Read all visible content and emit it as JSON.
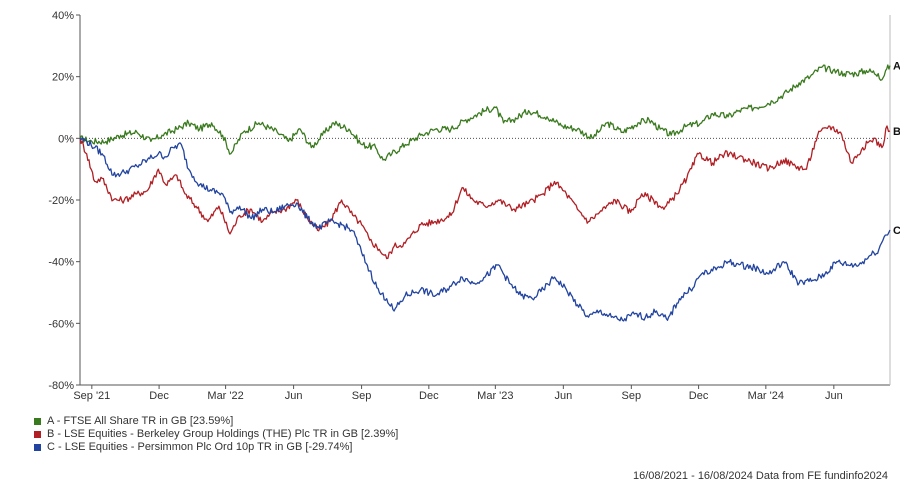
{
  "chart_data": {
    "type": "line",
    "ylim": [
      -80,
      40
    ],
    "y_ticks": [
      "40%",
      "20%",
      "0%",
      "-20%",
      "-40%",
      "-60%",
      "-80%"
    ],
    "x_ticks": [
      "Sep '21",
      "Dec",
      "Mar '22",
      "Jun",
      "Sep",
      "Dec",
      "Mar '23",
      "Jun",
      "Sep",
      "Dec",
      "Mar '24",
      "Jun"
    ],
    "x_range": [
      "2021-08-16",
      "2024-08-16"
    ],
    "grid": false,
    "zero_line": "dotted",
    "series": [
      {
        "end_label": "A",
        "name": "A - FTSE All Share TR in GB [23.59%]",
        "color": "#3a7a1e",
        "points": [
          [
            "2021-08-16",
            0
          ],
          [
            "2021-09-01",
            -1
          ],
          [
            "2021-09-20",
            -1
          ],
          [
            "2021-10-10",
            1
          ],
          [
            "2021-11-01",
            2
          ],
          [
            "2021-11-20",
            -1
          ],
          [
            "2021-12-05",
            1
          ],
          [
            "2021-12-25",
            3
          ],
          [
            "2022-01-10",
            5
          ],
          [
            "2022-01-25",
            3
          ],
          [
            "2022-02-10",
            5
          ],
          [
            "2022-02-25",
            1
          ],
          [
            "2022-03-08",
            -5
          ],
          [
            "2022-03-25",
            2
          ],
          [
            "2022-04-15",
            5
          ],
          [
            "2022-05-10",
            2
          ],
          [
            "2022-05-25",
            -1
          ],
          [
            "2022-06-10",
            3
          ],
          [
            "2022-06-25",
            -3
          ],
          [
            "2022-07-10",
            1
          ],
          [
            "2022-07-25",
            5
          ],
          [
            "2022-08-15",
            3
          ],
          [
            "2022-09-01",
            -2
          ],
          [
            "2022-09-20",
            -3
          ],
          [
            "2022-09-30",
            -7
          ],
          [
            "2022-10-12",
            -5
          ],
          [
            "2022-10-30",
            -2
          ],
          [
            "2022-11-20",
            1
          ],
          [
            "2022-12-10",
            3
          ],
          [
            "2022-12-31",
            3
          ],
          [
            "2023-01-20",
            6
          ],
          [
            "2023-02-15",
            9
          ],
          [
            "2023-03-01",
            10
          ],
          [
            "2023-03-12",
            5
          ],
          [
            "2023-03-25",
            6
          ],
          [
            "2023-04-15",
            9
          ],
          [
            "2023-05-10",
            7
          ],
          [
            "2023-05-31",
            4
          ],
          [
            "2023-06-20",
            3
          ],
          [
            "2023-07-10",
            0
          ],
          [
            "2023-07-30",
            5
          ],
          [
            "2023-08-20",
            2
          ],
          [
            "2023-09-10",
            5
          ],
          [
            "2023-09-25",
            6
          ],
          [
            "2023-10-10",
            3
          ],
          [
            "2023-10-25",
            1
          ],
          [
            "2023-11-15",
            4
          ],
          [
            "2023-12-05",
            5
          ],
          [
            "2023-12-20",
            8
          ],
          [
            "2024-01-10",
            7
          ],
          [
            "2024-01-25",
            9
          ],
          [
            "2024-02-15",
            10
          ],
          [
            "2024-03-10",
            12
          ],
          [
            "2024-03-30",
            15
          ],
          [
            "2024-04-15",
            18
          ],
          [
            "2024-04-30",
            20
          ],
          [
            "2024-05-15",
            23
          ],
          [
            "2024-05-31",
            22
          ],
          [
            "2024-06-15",
            21
          ],
          [
            "2024-07-01",
            21
          ],
          [
            "2024-07-15",
            22
          ],
          [
            "2024-07-31",
            21
          ],
          [
            "2024-08-05",
            19
          ],
          [
            "2024-08-10",
            22
          ],
          [
            "2024-08-16",
            23.59
          ]
        ]
      },
      {
        "end_label": "B",
        "name": "B - LSE Equities - Berkeley Group Holdings (THE) Plc TR in GB [2.39%]",
        "color": "#b11f24",
        "points": [
          [
            "2021-08-16",
            0
          ],
          [
            "2021-08-25",
            -5
          ],
          [
            "2021-09-05",
            -14
          ],
          [
            "2021-09-15",
            -13
          ],
          [
            "2021-09-30",
            -20
          ],
          [
            "2021-10-15",
            -20
          ],
          [
            "2021-11-01",
            -18
          ],
          [
            "2021-11-15",
            -17
          ],
          [
            "2021-11-30",
            -10
          ],
          [
            "2021-12-10",
            -15
          ],
          [
            "2021-12-25",
            -12
          ],
          [
            "2022-01-05",
            -18
          ],
          [
            "2022-01-20",
            -22
          ],
          [
            "2022-02-05",
            -27
          ],
          [
            "2022-02-20",
            -22
          ],
          [
            "2022-03-07",
            -31
          ],
          [
            "2022-03-20",
            -25
          ],
          [
            "2022-04-05",
            -23
          ],
          [
            "2022-04-20",
            -27
          ],
          [
            "2022-05-05",
            -24
          ],
          [
            "2022-05-20",
            -23
          ],
          [
            "2022-06-05",
            -20
          ],
          [
            "2022-06-20",
            -26
          ],
          [
            "2022-07-05",
            -30
          ],
          [
            "2022-07-20",
            -27
          ],
          [
            "2022-08-05",
            -20
          ],
          [
            "2022-08-20",
            -25
          ],
          [
            "2022-09-01",
            -28
          ],
          [
            "2022-09-12",
            -33
          ],
          [
            "2022-09-25",
            -36
          ],
          [
            "2022-10-05",
            -39
          ],
          [
            "2022-10-15",
            -35
          ],
          [
            "2022-10-30",
            -34
          ],
          [
            "2022-11-20",
            -28
          ],
          [
            "2022-12-10",
            -27
          ],
          [
            "2022-12-31",
            -25
          ],
          [
            "2023-01-15",
            -16
          ],
          [
            "2023-01-30",
            -20
          ],
          [
            "2023-02-15",
            -22
          ],
          [
            "2023-03-05",
            -20
          ],
          [
            "2023-03-25",
            -23
          ],
          [
            "2023-04-15",
            -21
          ],
          [
            "2023-05-05",
            -18
          ],
          [
            "2023-05-20",
            -14
          ],
          [
            "2023-06-05",
            -18
          ],
          [
            "2023-06-20",
            -23
          ],
          [
            "2023-07-05",
            -27
          ],
          [
            "2023-07-20",
            -24
          ],
          [
            "2023-08-10",
            -20
          ],
          [
            "2023-08-31",
            -24
          ],
          [
            "2023-09-15",
            -18
          ],
          [
            "2023-10-01",
            -20
          ],
          [
            "2023-10-15",
            -23
          ],
          [
            "2023-11-01",
            -18
          ],
          [
            "2023-11-15",
            -13
          ],
          [
            "2023-12-01",
            -5
          ],
          [
            "2023-12-20",
            -8
          ],
          [
            "2024-01-05",
            -5
          ],
          [
            "2024-01-25",
            -6
          ],
          [
            "2024-02-15",
            -8
          ],
          [
            "2024-03-05",
            -10
          ],
          [
            "2024-03-25",
            -7
          ],
          [
            "2024-04-10",
            -9
          ],
          [
            "2024-04-25",
            -10
          ],
          [
            "2024-05-10",
            1
          ],
          [
            "2024-05-25",
            4
          ],
          [
            "2024-06-10",
            2
          ],
          [
            "2024-06-25",
            -8
          ],
          [
            "2024-07-10",
            -3
          ],
          [
            "2024-07-25",
            0
          ],
          [
            "2024-08-05",
            -3
          ],
          [
            "2024-08-12",
            4
          ],
          [
            "2024-08-16",
            2.39
          ]
        ]
      },
      {
        "end_label": "C",
        "name": "C - LSE Equities - Persimmon Plc Ord 10p TR in GB [-29.74%]",
        "color": "#2244a0",
        "points": [
          [
            "2021-08-16",
            0
          ],
          [
            "2021-08-25",
            -1
          ],
          [
            "2021-09-05",
            -3
          ],
          [
            "2021-09-15",
            -5
          ],
          [
            "2021-09-30",
            -12
          ],
          [
            "2021-10-15",
            -11
          ],
          [
            "2021-11-01",
            -9
          ],
          [
            "2021-11-15",
            -7
          ],
          [
            "2021-11-30",
            -5
          ],
          [
            "2021-12-10",
            -6
          ],
          [
            "2021-12-20",
            -3
          ],
          [
            "2021-12-31",
            -2
          ],
          [
            "2022-01-10",
            -10
          ],
          [
            "2022-01-25",
            -15
          ],
          [
            "2022-02-10",
            -17
          ],
          [
            "2022-02-25",
            -18
          ],
          [
            "2022-03-07",
            -24
          ],
          [
            "2022-03-20",
            -22
          ],
          [
            "2022-04-05",
            -26
          ],
          [
            "2022-04-20",
            -23
          ],
          [
            "2022-05-05",
            -24
          ],
          [
            "2022-05-20",
            -22
          ],
          [
            "2022-06-05",
            -21
          ],
          [
            "2022-06-20",
            -26
          ],
          [
            "2022-07-05",
            -29
          ],
          [
            "2022-07-20",
            -27
          ],
          [
            "2022-08-05",
            -28
          ],
          [
            "2022-08-20",
            -30
          ],
          [
            "2022-09-01",
            -37
          ],
          [
            "2022-09-12",
            -43
          ],
          [
            "2022-09-25",
            -50
          ],
          [
            "2022-10-05",
            -52
          ],
          [
            "2022-10-15",
            -56
          ],
          [
            "2022-10-30",
            -51
          ],
          [
            "2022-11-20",
            -49
          ],
          [
            "2022-12-10",
            -51
          ],
          [
            "2022-12-31",
            -48
          ],
          [
            "2023-01-15",
            -45
          ],
          [
            "2023-01-30",
            -47
          ],
          [
            "2023-02-15",
            -45
          ],
          [
            "2023-03-05",
            -41
          ],
          [
            "2023-03-20",
            -47
          ],
          [
            "2023-04-05",
            -51
          ],
          [
            "2023-04-20",
            -52
          ],
          [
            "2023-05-05",
            -49
          ],
          [
            "2023-05-20",
            -45
          ],
          [
            "2023-06-05",
            -49
          ],
          [
            "2023-06-20",
            -54
          ],
          [
            "2023-07-05",
            -58
          ],
          [
            "2023-07-20",
            -56
          ],
          [
            "2023-08-05",
            -58
          ],
          [
            "2023-08-20",
            -59
          ],
          [
            "2023-09-05",
            -57
          ],
          [
            "2023-09-20",
            -58
          ],
          [
            "2023-10-05",
            -56
          ],
          [
            "2023-10-20",
            -59
          ],
          [
            "2023-11-05",
            -52
          ],
          [
            "2023-11-20",
            -49
          ],
          [
            "2023-12-05",
            -44
          ],
          [
            "2023-12-20",
            -43
          ],
          [
            "2024-01-10",
            -40
          ],
          [
            "2024-01-25",
            -41
          ],
          [
            "2024-02-15",
            -42
          ],
          [
            "2024-03-05",
            -44
          ],
          [
            "2024-03-25",
            -40
          ],
          [
            "2024-04-15",
            -47
          ],
          [
            "2024-05-05",
            -46
          ],
          [
            "2024-05-20",
            -44
          ],
          [
            "2024-06-05",
            -40
          ],
          [
            "2024-06-20",
            -41
          ],
          [
            "2024-07-05",
            -41
          ],
          [
            "2024-07-20",
            -38
          ],
          [
            "2024-08-01",
            -36
          ],
          [
            "2024-08-08",
            -32
          ],
          [
            "2024-08-16",
            -29.74
          ]
        ]
      }
    ]
  },
  "footer": "16/08/2021 - 16/08/2024 Data from FE fundinfo2024"
}
